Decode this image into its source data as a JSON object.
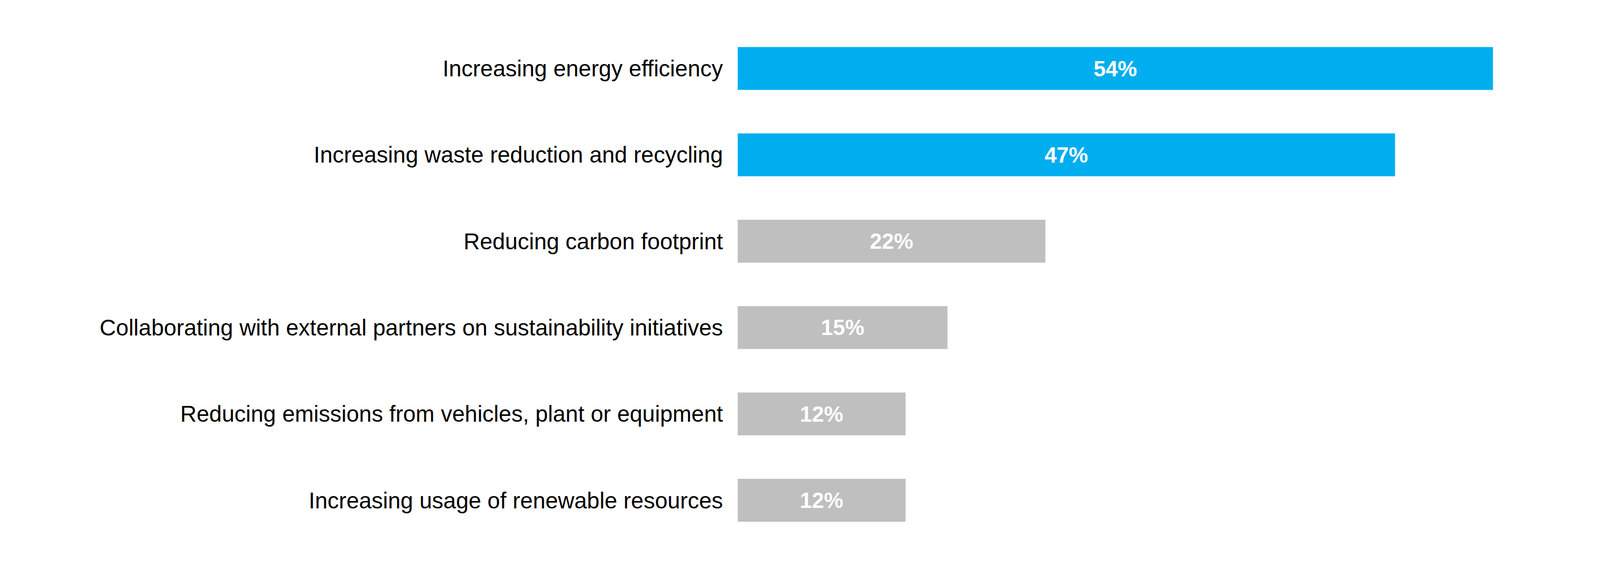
{
  "chart_data": {
    "type": "bar",
    "orientation": "horizontal",
    "categories": [
      "Increasing energy efficiency",
      "Increasing waste reduction and recycling",
      "Reducing carbon footprint",
      "Collaborating with external partners on sustainability initiatives",
      "Reducing emissions from vehicles, plant or equipment",
      "Increasing usage of renewable resources"
    ],
    "values": [
      54,
      47,
      22,
      15,
      12,
      12
    ],
    "value_labels": [
      "54%",
      "47%",
      "22%",
      "15%",
      "12%",
      "12%"
    ],
    "colors": [
      "#00aeef",
      "#00aeef",
      "#bfbfbf",
      "#bfbfbf",
      "#bfbfbf",
      "#bfbfbf"
    ],
    "xlim": [
      0,
      60
    ],
    "data_labels": true,
    "tick_labels": false,
    "grid": false
  }
}
